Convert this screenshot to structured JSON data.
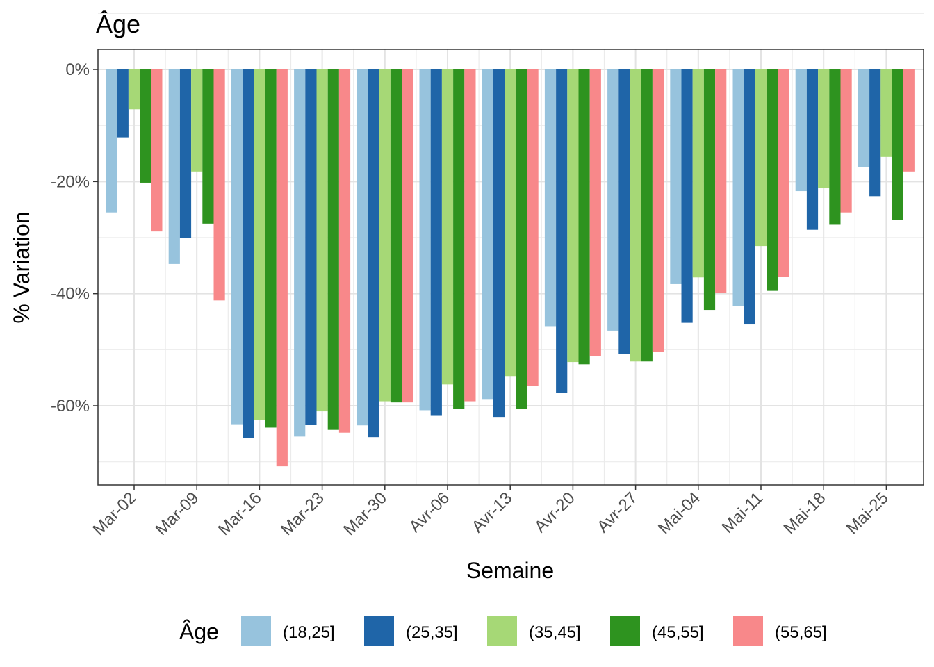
{
  "chart_data": {
    "type": "bar",
    "title": "Âge",
    "xlabel": "Semaine",
    "ylabel": "% Variation",
    "ylim": [
      -74,
      3.5
    ],
    "yticks": [
      0,
      -20,
      -40,
      -60
    ],
    "ytick_labels": [
      "0%",
      "-20%",
      "-40%",
      "-60%"
    ],
    "grid": true,
    "legend_position": "bottom",
    "legend_title": "Âge",
    "categories": [
      "Mar-02",
      "Mar-09",
      "Mar-16",
      "Mar-23",
      "Mar-30",
      "Avr-06",
      "Avr-13",
      "Avr-20",
      "Avr-27",
      "Mai-04",
      "Mai-11",
      "Mai-18",
      "Mai-25"
    ],
    "series": [
      {
        "name": "(18,25]",
        "color": "#97C3DD",
        "values": [
          -25.5,
          -34.7,
          -63.3,
          -65.5,
          -63.5,
          -60.8,
          -58.8,
          -45.8,
          -46.6,
          -38.3,
          -42.2,
          -21.7,
          -17.4
        ]
      },
      {
        "name": "(25,35]",
        "color": "#1F65A8",
        "values": [
          -12.1,
          -30.0,
          -65.8,
          -63.4,
          -65.6,
          -61.8,
          -62.0,
          -57.7,
          -50.8,
          -45.2,
          -45.5,
          -28.6,
          -22.6
        ]
      },
      {
        "name": "(35,45]",
        "color": "#A6D876",
        "values": [
          -7.1,
          -18.2,
          -62.5,
          -61.0,
          -59.2,
          -56.2,
          -54.7,
          -52.2,
          -52.1,
          -37.1,
          -31.5,
          -21.2,
          -15.6
        ]
      },
      {
        "name": "(45,55]",
        "color": "#2E931F",
        "values": [
          -20.2,
          -27.5,
          -63.9,
          -64.3,
          -59.4,
          -60.6,
          -60.6,
          -52.6,
          -52.1,
          -42.9,
          -39.5,
          -27.7,
          -26.9
        ]
      },
      {
        "name": "(55,65]",
        "color": "#F8888A",
        "values": [
          -28.9,
          -41.2,
          -70.8,
          -64.8,
          -59.4,
          -59.2,
          -56.5,
          -51.1,
          -50.4,
          -39.9,
          -37.0,
          -25.5,
          -18.2
        ]
      }
    ]
  }
}
